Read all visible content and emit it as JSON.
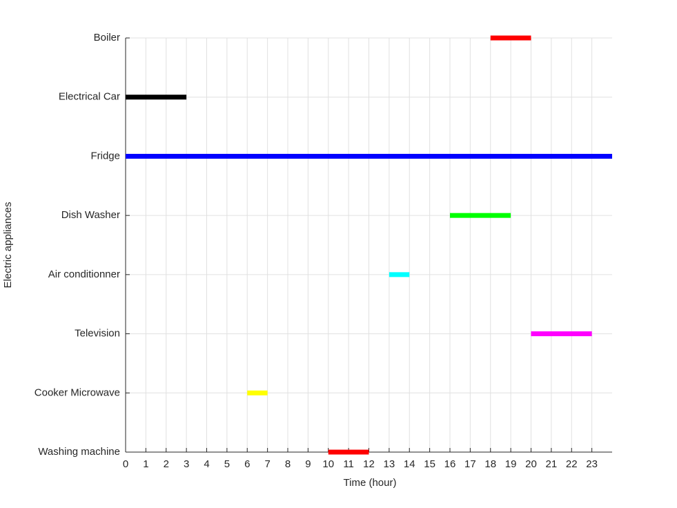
{
  "chart_data": {
    "type": "gantt",
    "xlabel": "Time (hour)",
    "ylabel": "Electric appliances",
    "categories": [
      "Washing machine",
      "Cooker Microwave",
      "Television",
      "Air conditionner",
      "Dish Washer",
      "Fridge",
      "Electrical Car",
      "Boiler"
    ],
    "tasks": [
      {
        "name": "Washing machine",
        "start": 10,
        "end": 12,
        "color": "#ff0000"
      },
      {
        "name": "Cooker Microwave",
        "start": 6,
        "end": 7,
        "color": "#ffff00"
      },
      {
        "name": "Television",
        "start": 20,
        "end": 23,
        "color": "#ff00ff"
      },
      {
        "name": "Air conditionner",
        "start": 13,
        "end": 14,
        "color": "#00ffff"
      },
      {
        "name": "Dish Washer",
        "start": 16,
        "end": 19,
        "color": "#00ff00"
      },
      {
        "name": "Fridge",
        "start": 0,
        "end": 24,
        "color": "#0000ff"
      },
      {
        "name": "Electrical Car",
        "start": 0,
        "end": 3,
        "color": "#000000"
      },
      {
        "name": "Boiler",
        "start": 18,
        "end": 20,
        "color": "#ff0000"
      }
    ],
    "xlim": [
      0,
      24
    ],
    "xticks": [
      0,
      1,
      2,
      3,
      4,
      5,
      6,
      7,
      8,
      9,
      10,
      11,
      12,
      13,
      14,
      15,
      16,
      17,
      18,
      19,
      20,
      21,
      22,
      23
    ],
    "grid": true
  }
}
